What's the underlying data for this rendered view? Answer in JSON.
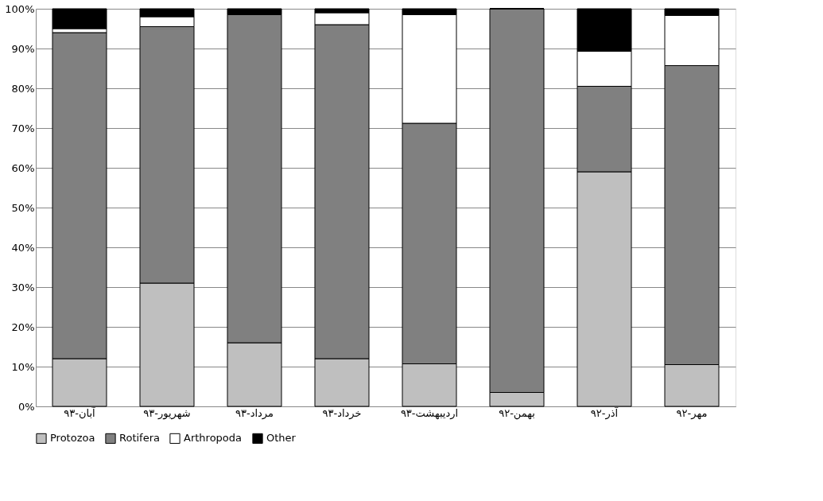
{
  "chart_data": {
    "type": "bar",
    "stacked": true,
    "categories": [
      "آبان-۹۳",
      "شهریور-۹۳",
      "مرداد-۹۳",
      "خرداد-۹۳",
      "اردیبهشت-۹۳",
      "بهمن-۹۲",
      "آذر-۹۲",
      "مهر-۹۲"
    ],
    "series": [
      {
        "name": "Protozoa",
        "color": "#bfbfbf",
        "values": [
          12,
          31,
          16,
          12,
          10.7,
          3.5,
          59,
          10.5
        ]
      },
      {
        "name": "Rotifera",
        "color": "#808080",
        "values": [
          82,
          64.5,
          82.5,
          84,
          60.5,
          96.5,
          21.5,
          75.2
        ]
      },
      {
        "name": "Arthropoda",
        "color": "#ffffff",
        "values": [
          1,
          2.5,
          0,
          3,
          27.3,
          0,
          8.8,
          12.6
        ]
      },
      {
        "name": "Other",
        "color": "#000000",
        "values": [
          5,
          2,
          1.5,
          1,
          1.5,
          0,
          10.7,
          1.7
        ]
      }
    ],
    "ylim": [
      0,
      100
    ],
    "yticks": [
      {
        "value": 0,
        "label": "0%"
      },
      {
        "value": 10,
        "label": "10%"
      },
      {
        "value": 20,
        "label": "20%"
      },
      {
        "value": 30,
        "label": "30%"
      },
      {
        "value": 40,
        "label": "40%"
      },
      {
        "value": 50,
        "label": "50%"
      },
      {
        "value": 60,
        "label": "60%"
      },
      {
        "value": 70,
        "label": "70%"
      },
      {
        "value": 80,
        "label": "80%"
      },
      {
        "value": 90,
        "label": "90%"
      },
      {
        "value": 100,
        "label": "100%"
      }
    ],
    "grid": "y",
    "legend": "bottom"
  }
}
